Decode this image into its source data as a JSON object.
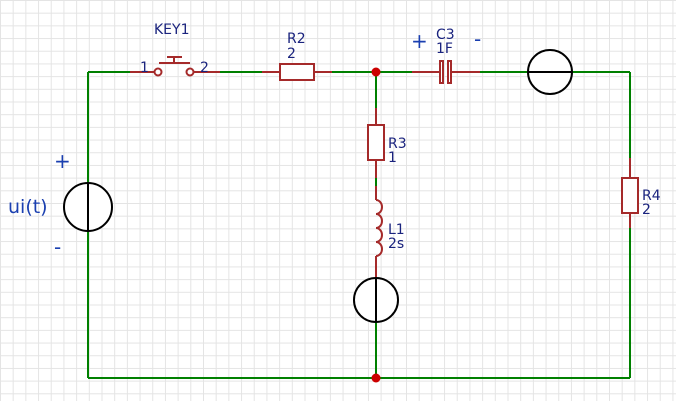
{
  "components": {
    "key1": {
      "name": "KEY1",
      "pin1": "1",
      "pin2": "2"
    },
    "r2": {
      "name": "R2",
      "value": "2"
    },
    "c3": {
      "name": "C3",
      "value": "1F",
      "plus": "+",
      "minus": "-"
    },
    "r3": {
      "name": "R3",
      "value": "1"
    },
    "l1": {
      "name": "L1",
      "value": "2s"
    },
    "r4": {
      "name": "R4",
      "value": "2"
    },
    "ui": {
      "name": "ui(t)",
      "plus": "+",
      "minus": "-"
    }
  },
  "colors": {
    "wire": "#008000",
    "component": "#a52a2a",
    "junction": "#cc0000",
    "label": "#1a237e",
    "grid": "#e4e4e4"
  }
}
